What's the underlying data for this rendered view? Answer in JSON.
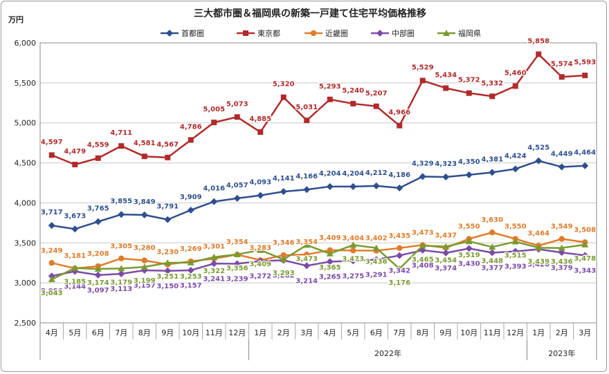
{
  "chart_data": {
    "type": "line",
    "title": "三大都市圏＆福岡県の新築一戸建て住宅平均価格推移",
    "ylabel": "万円",
    "ylim": [
      2500,
      6000
    ],
    "yticks": [
      "2,500",
      "3,000",
      "3,500",
      "4,000",
      "4,500",
      "5,000",
      "5,500",
      "6,000"
    ],
    "ytick_values": [
      2500,
      3000,
      3500,
      4000,
      4500,
      5000,
      5500,
      6000
    ],
    "grid": true,
    "legend_position": "top",
    "categories": [
      "4月",
      "5月",
      "6月",
      "7月",
      "8月",
      "9月",
      "10月",
      "11月",
      "12月",
      "1月",
      "2月",
      "3月",
      "4月",
      "5月",
      "6月",
      "7月",
      "8月",
      "9月",
      "10月",
      "11月",
      "12月",
      "1月",
      "2月",
      "3月"
    ],
    "year_groups": [
      {
        "label": "",
        "start": 0,
        "end": 8
      },
      {
        "label": "2022年",
        "start": 9,
        "end": 20
      },
      {
        "label": "2023年",
        "start": 21,
        "end": 23
      }
    ],
    "series": [
      {
        "name": "首都圏",
        "color": "#2e4f8e",
        "marker": "diamond",
        "values": [
          3717,
          3673,
          3765,
          3855,
          3849,
          3791,
          3909,
          4016,
          4057,
          4093,
          4141,
          4166,
          4204,
          4204,
          4212,
          4186,
          4329,
          4323,
          4350,
          4381,
          4424,
          4525,
          4449,
          4464
        ],
        "labels": [
          "3,717",
          "3,673",
          "3,765",
          "3,855",
          "3,849",
          "3,791",
          "3,909",
          "4,016",
          "4,057",
          "4,093",
          "4,141",
          "4,166",
          "4,204",
          "4,204",
          "4,212",
          "4,186",
          "4,329",
          "4,323",
          "4,350",
          "4,381",
          "4,424",
          "4,525",
          "4,449",
          "4,464"
        ]
      },
      {
        "name": "東京都",
        "color": "#b12a2a",
        "marker": "square",
        "values": [
          4597,
          4479,
          4559,
          4711,
          4581,
          4567,
          4786,
          5005,
          5073,
          4885,
          5320,
          5031,
          5293,
          5240,
          5207,
          4966,
          5529,
          5434,
          5372,
          5332,
          5460,
          5858,
          5574,
          5593
        ],
        "labels": [
          "4,597",
          "4,479",
          "4,559",
          "4,711",
          "4,581",
          "4,567",
          "4,786",
          "5,005",
          "5,073",
          "4,885",
          "5,320",
          "5,031",
          "5,293",
          "5,240",
          "5,207",
          "4,966",
          "5,529",
          "5,434",
          "5,372",
          "5,332",
          "5,460",
          "5,858",
          "5,574",
          "5,593"
        ]
      },
      {
        "name": "近畿圏",
        "color": "#e07b2a",
        "marker": "circle",
        "values": [
          3249,
          3181,
          3208,
          3305,
          3280,
          3230,
          3269,
          3301,
          3354,
          3283,
          3346,
          3354,
          3409,
          3404,
          3402,
          3435,
          3473,
          3437,
          3550,
          3630,
          3550,
          3464,
          3549,
          3508
        ],
        "labels": [
          "3,249",
          "3,181",
          "3,208",
          "3,305",
          "3,280",
          "3,230",
          "3,269",
          "3,301",
          "3,354",
          "3,283",
          "3,346",
          "3,354",
          "3,409",
          "3,404",
          "3,402",
          "3,435",
          "3,473",
          "3,437",
          "3,550",
          "3,630",
          "3,550",
          "3,464",
          "3,549",
          "3,508"
        ]
      },
      {
        "name": "中部圏",
        "color": "#7b4aa8",
        "marker": "diamond",
        "values": [
          3086,
          3144,
          3097,
          3113,
          3157,
          3150,
          3157,
          3241,
          3239,
          3272,
          3282,
          3214,
          3265,
          3275,
          3291,
          3342,
          3408,
          3374,
          3430,
          3377,
          3393,
          3420,
          3379,
          3343
        ],
        "labels": [
          "3,086",
          "3,144",
          "3,097",
          "3,113",
          "3,157",
          "3,150",
          "3,157",
          "3,241",
          "3,239",
          "3,272",
          "3,282",
          "3,214",
          "3,265",
          "3,275",
          "3,291",
          "3,342",
          "3,408",
          "3,374",
          "3,430",
          "3,377",
          "3,393",
          "3,420",
          "3,379",
          "3,343"
        ]
      },
      {
        "name": "福岡県",
        "color": "#7a9a2e",
        "marker": "triangle",
        "values": [
          3043,
          3185,
          3174,
          3179,
          3199,
          3251,
          3253,
          3322,
          3356,
          3409,
          3293,
          3473,
          3365,
          3473,
          3436,
          3176,
          3465,
          3454,
          3519,
          3448,
          3515,
          3439,
          3436,
          3478
        ],
        "labels": [
          "3,043",
          "3,185",
          "3,174",
          "3,179",
          "3,199",
          "3,251",
          "3,253",
          "3,322",
          "3,356",
          "3,409",
          "3,293",
          "3,473",
          "3,365",
          "3,473",
          "3,436",
          "3,176",
          "3,465",
          "3,454",
          "3,519",
          "3,448",
          "3,515",
          "3,439",
          "3,436",
          "3,478"
        ]
      }
    ]
  }
}
